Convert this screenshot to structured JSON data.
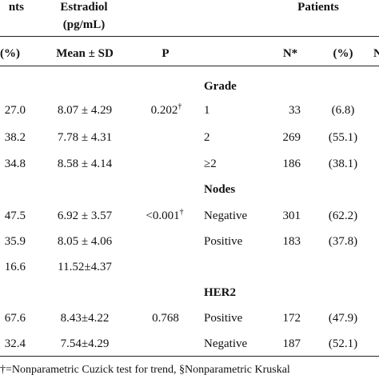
{
  "header": {
    "col_partial_left": "nts",
    "estradiol_title": "Estradiol",
    "estradiol_unit": "(pg/mL)",
    "patients_title": "Patients",
    "sub_pct_left": "(%)",
    "sub_mean_sd": "Mean ± SD",
    "sub_p": "P",
    "sub_n": "N*",
    "sub_pct_right": "(%)",
    "sub_partial_right": "N"
  },
  "rows_left": [
    {
      "pct": "27.0",
      "mean": "8.07 ± 4.29"
    },
    {
      "pct": "38.2",
      "mean": "7.78 ± 4.31"
    },
    {
      "pct": "34.8",
      "mean": "8.58 ± 4.14"
    },
    {
      "pct": "47.5",
      "mean": "6.92 ± 3.57"
    },
    {
      "pct": "35.9",
      "mean": "8.05 ± 4.06"
    },
    {
      "pct": "16.6",
      "mean": "11.52±4.37"
    },
    {
      "pct": "67.6",
      "mean": "8.43±4.22"
    },
    {
      "pct": "32.4",
      "mean": "7.54±4.29"
    }
  ],
  "p_values": {
    "grade": "0.202",
    "nodes": "<0.001",
    "her2": "0.768",
    "dagger": "†"
  },
  "sections": {
    "grade": "Grade",
    "nodes": "Nodes",
    "her2": "HER2"
  },
  "rows_right": [
    {
      "label": "1",
      "n": "33",
      "pct": "(6.8)"
    },
    {
      "label": "2",
      "n": "269",
      "pct": "(55.1)"
    },
    {
      "label": "≥2",
      "n": "186",
      "pct": "(38.1)"
    },
    {
      "label": "Negative",
      "n": "301",
      "pct": "(62.2)"
    },
    {
      "label": "Positive",
      "n": "183",
      "pct": "(37.8)"
    },
    {
      "label": "Positive",
      "n": "172",
      "pct": "(47.9)"
    },
    {
      "label": "Negative",
      "n": "187",
      "pct": "(52.1)"
    }
  ],
  "footnote": "†=Nonparametric Cuzick test for trend, §Nonparametric Kruskal"
}
